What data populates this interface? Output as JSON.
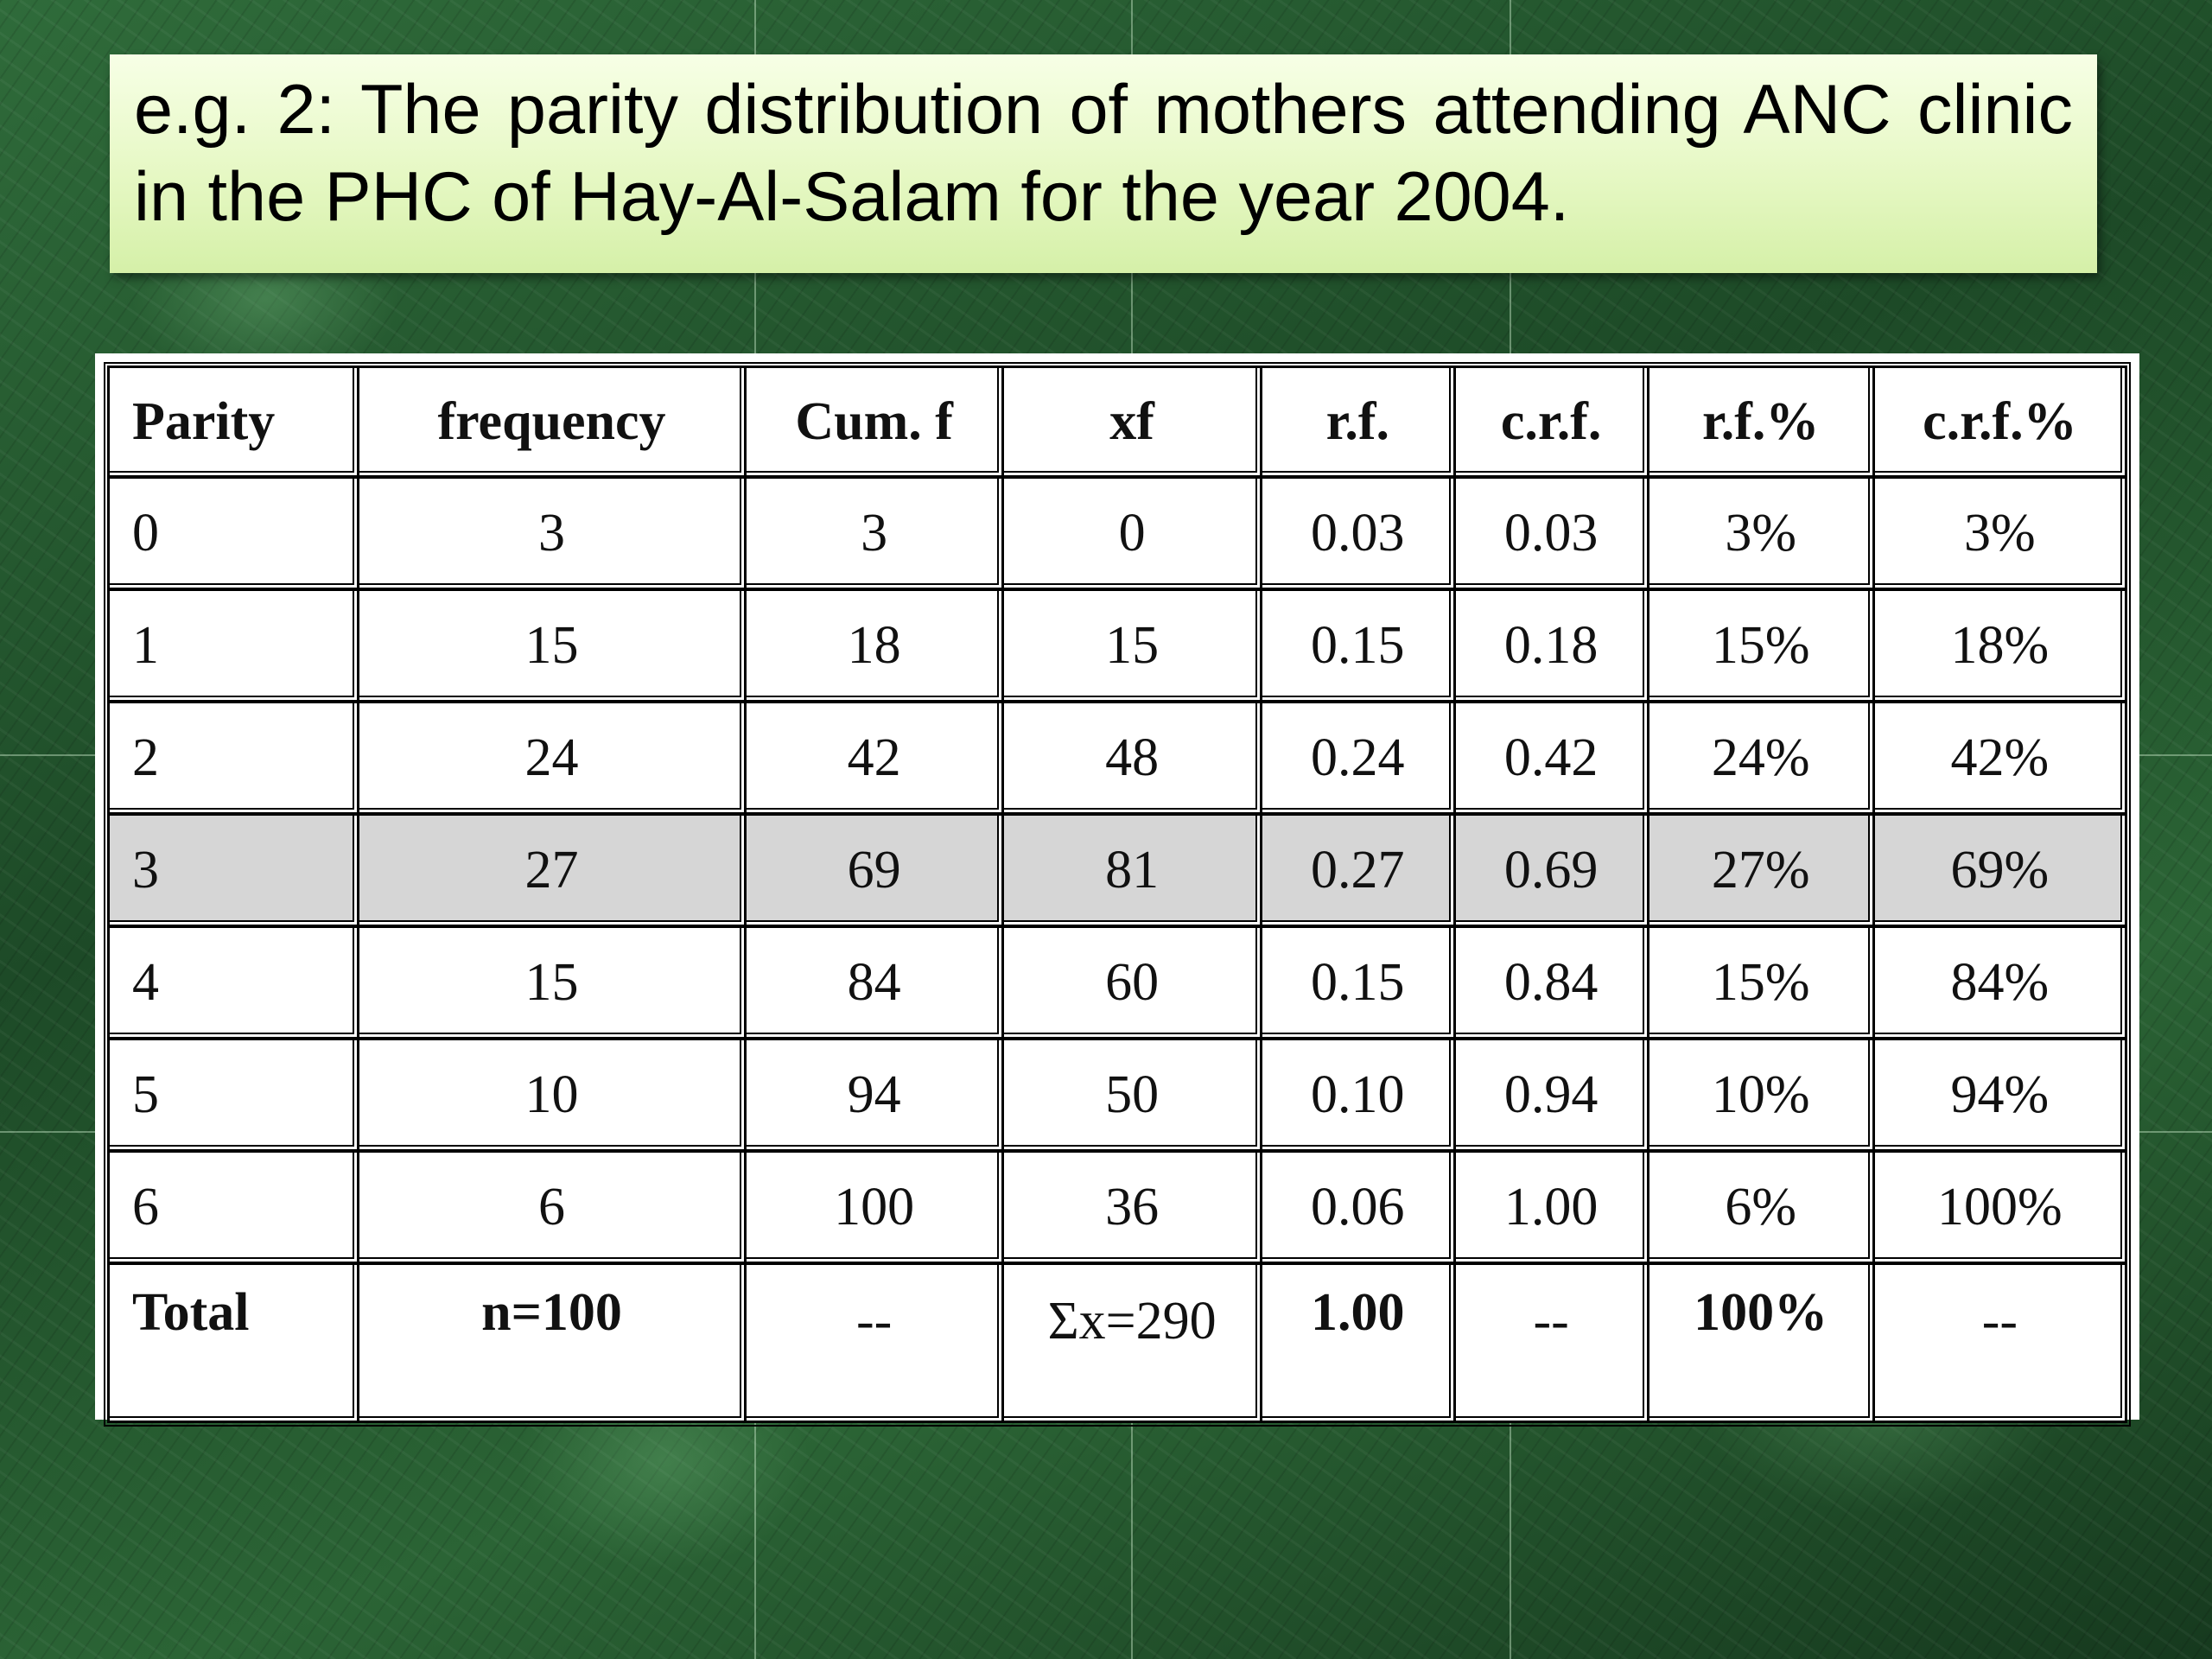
{
  "slide": {
    "title": "e.g. 2: The parity distribution of mothers attending ANC clinic in the PHC of Hay-Al-Salam for the year 2004."
  },
  "table": {
    "headers": [
      "Parity",
      "frequency",
      "Cum. f",
      "xf",
      "r.f.",
      "c.r.f.",
      "r.f.%",
      "c.r.f.%"
    ],
    "rows": [
      [
        "0",
        "3",
        "3",
        "0",
        "0.03",
        "0.03",
        "3%",
        "3%"
      ],
      [
        "1",
        "15",
        "18",
        "15",
        "0.15",
        "0.18",
        "15%",
        "18%"
      ],
      [
        "2",
        "24",
        "42",
        "48",
        "0.24",
        "0.42",
        "24%",
        "42%"
      ],
      [
        "3",
        "27",
        "69",
        "81",
        "0.27",
        "0.69",
        "27%",
        "69%"
      ],
      [
        "4",
        "15",
        "84",
        "60",
        "0.15",
        "0.84",
        "15%",
        "84%"
      ],
      [
        "5",
        "10",
        "94",
        "50",
        "0.10",
        "0.94",
        "10%",
        "94%"
      ],
      [
        "6",
        "6",
        "100",
        "36",
        "0.06",
        "1.00",
        "6%",
        "100%"
      ]
    ],
    "highlighted_row_index": 3,
    "total": [
      "Total",
      "n=100",
      "--",
      "Σx=290",
      "1.00",
      "--",
      "100%",
      "--"
    ]
  },
  "colors": {
    "title_box": "#e6f8c4",
    "highlight_row": "#d6d6d6",
    "background": "#1e4a28"
  }
}
